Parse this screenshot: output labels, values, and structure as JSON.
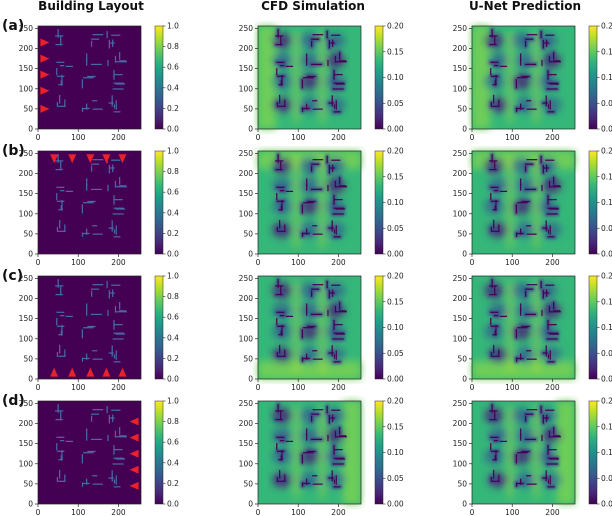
{
  "columns": [
    "Building Layout",
    "CFD Simulation",
    "U-Net Prediction"
  ],
  "rows": [
    "(a)",
    "(b)",
    "(c)",
    "(d)"
  ],
  "wind_direction": [
    "west",
    "north",
    "south",
    "east"
  ],
  "colors": {
    "viridis": [
      "#440154",
      "#482878",
      "#3e4989",
      "#31688e",
      "#26828e",
      "#1f9e89",
      "#35b779",
      "#6ece58",
      "#b5de2b",
      "#fde725"
    ],
    "arrow": "#e8212a",
    "building": "#4a6aa6"
  },
  "chart_data": {
    "type": "heatmap",
    "x_ticks": [
      "0",
      "100",
      "200"
    ],
    "y_ticks": [
      "0",
      "50",
      "100",
      "150",
      "200",
      "250"
    ],
    "xlim": [
      0,
      256
    ],
    "ylim": [
      0,
      256
    ],
    "layout_colorbar": {
      "range": [
        0.0,
        1.0
      ],
      "ticks": [
        "0.0",
        "0.2",
        "0.4",
        "0.6",
        "0.8",
        "1.0"
      ]
    },
    "velocity_colorbar": {
      "range": [
        0.0,
        0.2
      ],
      "ticks": [
        "0.00",
        "0.05",
        "0.10",
        "0.15",
        "0.20"
      ]
    }
  }
}
